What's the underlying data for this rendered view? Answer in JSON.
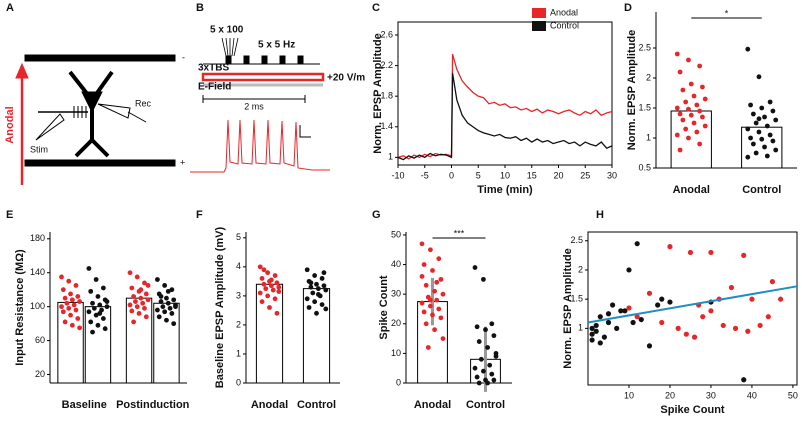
{
  "panel_labels": [
    "A",
    "B",
    "C",
    "D",
    "E",
    "F",
    "G",
    "H"
  ],
  "diagram_a": {
    "polarity_top": "-",
    "polarity_bottom": "+",
    "arrow_label": "Anodal",
    "stim": "Stim",
    "rec": "Rec"
  },
  "diagram_b": {
    "burst": "5 x 100",
    "rate": "5 x 5 Hz",
    "protocol": "3xTBS",
    "field": "E-Field",
    "field_strength": "+20 V/m",
    "duration": "2 ms"
  },
  "chart_data": [
    {
      "type": "line",
      "xlabel": "Time (min)",
      "ylabel": "Norm. EPSP Amplitude",
      "x": [
        -10,
        -9,
        -8,
        -7,
        -6,
        -5,
        -4,
        -3,
        -2,
        -1,
        0,
        0.2,
        1,
        2,
        3,
        4,
        5,
        6,
        7,
        8,
        9,
        10,
        11,
        12,
        13,
        14,
        15,
        16,
        17,
        18,
        19,
        20,
        21,
        22,
        23,
        24,
        25,
        26,
        27,
        28,
        29,
        30
      ],
      "series": [
        {
          "name": "Anodal",
          "color": "#e8262a",
          "values": [
            1.0,
            1.02,
            0.98,
            1.03,
            1.0,
            1.04,
            1.01,
            1.05,
            1.03,
            1.04,
            1.02,
            2.35,
            2.15,
            2.0,
            1.92,
            1.85,
            1.8,
            1.78,
            1.7,
            1.72,
            1.68,
            1.7,
            1.65,
            1.66,
            1.62,
            1.64,
            1.6,
            1.63,
            1.58,
            1.62,
            1.6,
            1.57,
            1.6,
            1.62,
            1.58,
            1.55,
            1.6,
            1.57,
            1.62,
            1.55,
            1.58,
            1.6
          ]
        },
        {
          "name": "Control",
          "color": "#111111",
          "values": [
            1.0,
            0.97,
            1.02,
            0.99,
            1.03,
            1.0,
            1.05,
            1.02,
            1.04,
            1.03,
            1.0,
            2.1,
            1.75,
            1.55,
            1.45,
            1.4,
            1.35,
            1.32,
            1.3,
            1.28,
            1.3,
            1.26,
            1.25,
            1.27,
            1.22,
            1.25,
            1.2,
            1.24,
            1.2,
            1.22,
            1.18,
            1.2,
            1.22,
            1.18,
            1.2,
            1.15,
            1.2,
            1.17,
            1.15,
            1.2,
            1.12,
            1.15
          ]
        }
      ],
      "xlim": [
        -10,
        30
      ],
      "xticks": [
        -10,
        -5,
        0,
        5,
        10,
        15,
        20,
        25,
        30
      ],
      "ylim": [
        0.9,
        2.77
      ],
      "yticks": [
        1,
        1.4,
        1.8,
        2.2,
        2.6
      ]
    },
    {
      "type": "bar",
      "ylabel": "Norm. EPSP Amplitude",
      "categories": [
        "Anodal",
        "Control"
      ],
      "significance": "*",
      "series": [
        {
          "colors": [
            "#e8262a",
            "#111111"
          ],
          "values": [
            1.45,
            1.18
          ],
          "points": [
            [
              2.4,
              2.3,
              2.2,
              2.1,
              1.9,
              1.85,
              1.8,
              1.7,
              1.65,
              1.6,
              1.55,
              1.5,
              1.48,
              1.45,
              1.4,
              1.38,
              1.35,
              1.3,
              1.25,
              1.2,
              1.15,
              1.1,
              1.05,
              1.0,
              0.9,
              0.8
            ],
            [
              2.48,
              2.02,
              1.6,
              1.55,
              1.5,
              1.45,
              1.4,
              1.35,
              1.3,
              1.25,
              1.2,
              1.15,
              1.1,
              1.05,
              1.0,
              0.98,
              0.95,
              0.9,
              0.85,
              0.8,
              0.75,
              0.7,
              0.68,
              1.32
            ]
          ]
        }
      ],
      "ylim": [
        0.5,
        3.1
      ],
      "yticks": [
        0.5,
        1,
        1.5,
        2,
        2.5
      ]
    },
    {
      "type": "bar",
      "ylabel": "Input Resistance (MΩ)",
      "categories": [
        "Baseline",
        "Postinduction"
      ],
      "series": [
        {
          "color": "#e8262a",
          "values": [
            105,
            110
          ],
          "points": [
            [
              135,
              130,
              125,
              120,
              115,
              112,
              110,
              108,
              106,
              104,
              102,
              100,
              98,
              96,
              94,
              90,
              86,
              82,
              78,
              75
            ],
            [
              140,
              135,
              128,
              122,
              118,
              115,
              112,
              110,
              108,
              106,
              104,
              102,
              100,
              98,
              95,
              92,
              88,
              82,
              120,
              125
            ]
          ]
        },
        {
          "color": "#111111",
          "values": [
            100,
            104
          ],
          "points": [
            [
              145,
              132,
              122,
              118,
              112,
              108,
              104,
              102,
              100,
              98,
              96,
              94,
              90,
              86,
              82,
              78,
              74,
              70,
              92,
              106
            ],
            [
              132,
              125,
              120,
              115,
              110,
              108,
              106,
              104,
              102,
              100,
              98,
              96,
              94,
              92,
              88,
              84,
              80,
              112,
              118,
              100
            ]
          ]
        }
      ],
      "ylim": [
        10,
        188
      ],
      "yticks": [
        20,
        60,
        100,
        140,
        180
      ]
    },
    {
      "type": "bar",
      "ylabel": "Baseline EPSP Amplitude (mV)",
      "categories": [
        "Anodal",
        "Control"
      ],
      "series": [
        {
          "colors": [
            "#e8262a",
            "#111111"
          ],
          "values": [
            3.4,
            3.25
          ],
          "points": [
            [
              4.0,
              3.8,
              3.7,
              3.6,
              3.5,
              3.45,
              3.4,
              3.35,
              3.3,
              3.25,
              3.2,
              3.1,
              3.0,
              2.9,
              2.8,
              2.6,
              2.4,
              3.9,
              3.55,
              3.15
            ],
            [
              3.9,
              3.7,
              3.6,
              3.5,
              3.4,
              3.35,
              3.3,
              3.25,
              3.2,
              3.1,
              3.0,
              2.9,
              2.8,
              2.7,
              2.6,
              2.4,
              3.8,
              3.45,
              3.05,
              2.55
            ]
          ]
        }
      ],
      "ylim": [
        0,
        5.2
      ],
      "yticks": [
        0,
        1,
        2,
        3,
        4,
        5
      ]
    },
    {
      "type": "bar",
      "ylabel": "Spike Count",
      "categories": [
        "Anodal",
        "Control"
      ],
      "significance": "***",
      "series": [
        {
          "colors": [
            "#e8262a",
            "#111111"
          ],
          "values": [
            27.5,
            8
          ],
          "errors": [
            8,
            11
          ],
          "error_color": "#999999",
          "points": [
            [
              47,
              45,
              42,
              40,
              38,
              35,
              33,
              31,
              30,
              29,
              28,
              27,
              26,
              25,
              24,
              23,
              22,
              20,
              18,
              15,
              12,
              34,
              36,
              28
            ],
            [
              39,
              35,
              20,
              19,
              18,
              16,
              14,
              12,
              10,
              8,
              6,
              5,
              4,
              3,
              2,
              1,
              1,
              0,
              0,
              9
            ]
          ]
        }
      ],
      "ylim": [
        0,
        51
      ],
      "yticks": [
        0,
        10,
        20,
        30,
        40,
        50
      ]
    },
    {
      "type": "scatter",
      "xlabel": "Spike Count",
      "ylabel": "Norm. EPSP Amplitude",
      "series": [
        {
          "color": "#e8262a",
          "x": [
            20,
            25,
            30,
            35,
            38,
            40,
            45,
            47,
            22,
            28,
            32,
            18,
            15,
            24,
            26,
            30,
            36,
            42,
            10,
            12,
            27,
            33,
            39,
            44
          ],
          "values": [
            2.4,
            2.3,
            2.3,
            1.7,
            2.25,
            1.5,
            1.8,
            1.5,
            1.0,
            1.2,
            1.5,
            1.1,
            1.6,
            0.9,
            0.85,
            1.3,
            1.0,
            1.05,
            1.35,
            1.2,
            1.4,
            1.05,
            0.95,
            1.2
          ]
        },
        {
          "color": "#111111",
          "x": [
            12,
            10,
            8,
            5,
            3,
            2,
            1,
            1,
            2,
            4,
            6,
            7,
            9,
            11,
            15,
            18,
            20,
            30,
            38,
            3,
            1,
            5,
            13,
            17
          ],
          "values": [
            2.45,
            2.0,
            1.3,
            1.1,
            1.2,
            1.05,
            0.9,
            0.8,
            0.95,
            0.85,
            1.4,
            1.0,
            1.3,
            1.1,
            0.7,
            1.5,
            1.45,
            1.45,
            0.12,
            0.75,
            1.0,
            1.25,
            1.15,
            1.4
          ]
        }
      ],
      "fit": {
        "color": "#1f8fc2",
        "x": [
          0,
          51
        ],
        "values": [
          1.1,
          1.72
        ]
      },
      "xlim": [
        0,
        51
      ],
      "xticks": [
        10,
        20,
        30,
        40,
        50
      ],
      "ylim": [
        0.03,
        2.65
      ],
      "yticks": [
        1,
        1.5,
        2,
        2.5
      ]
    }
  ]
}
